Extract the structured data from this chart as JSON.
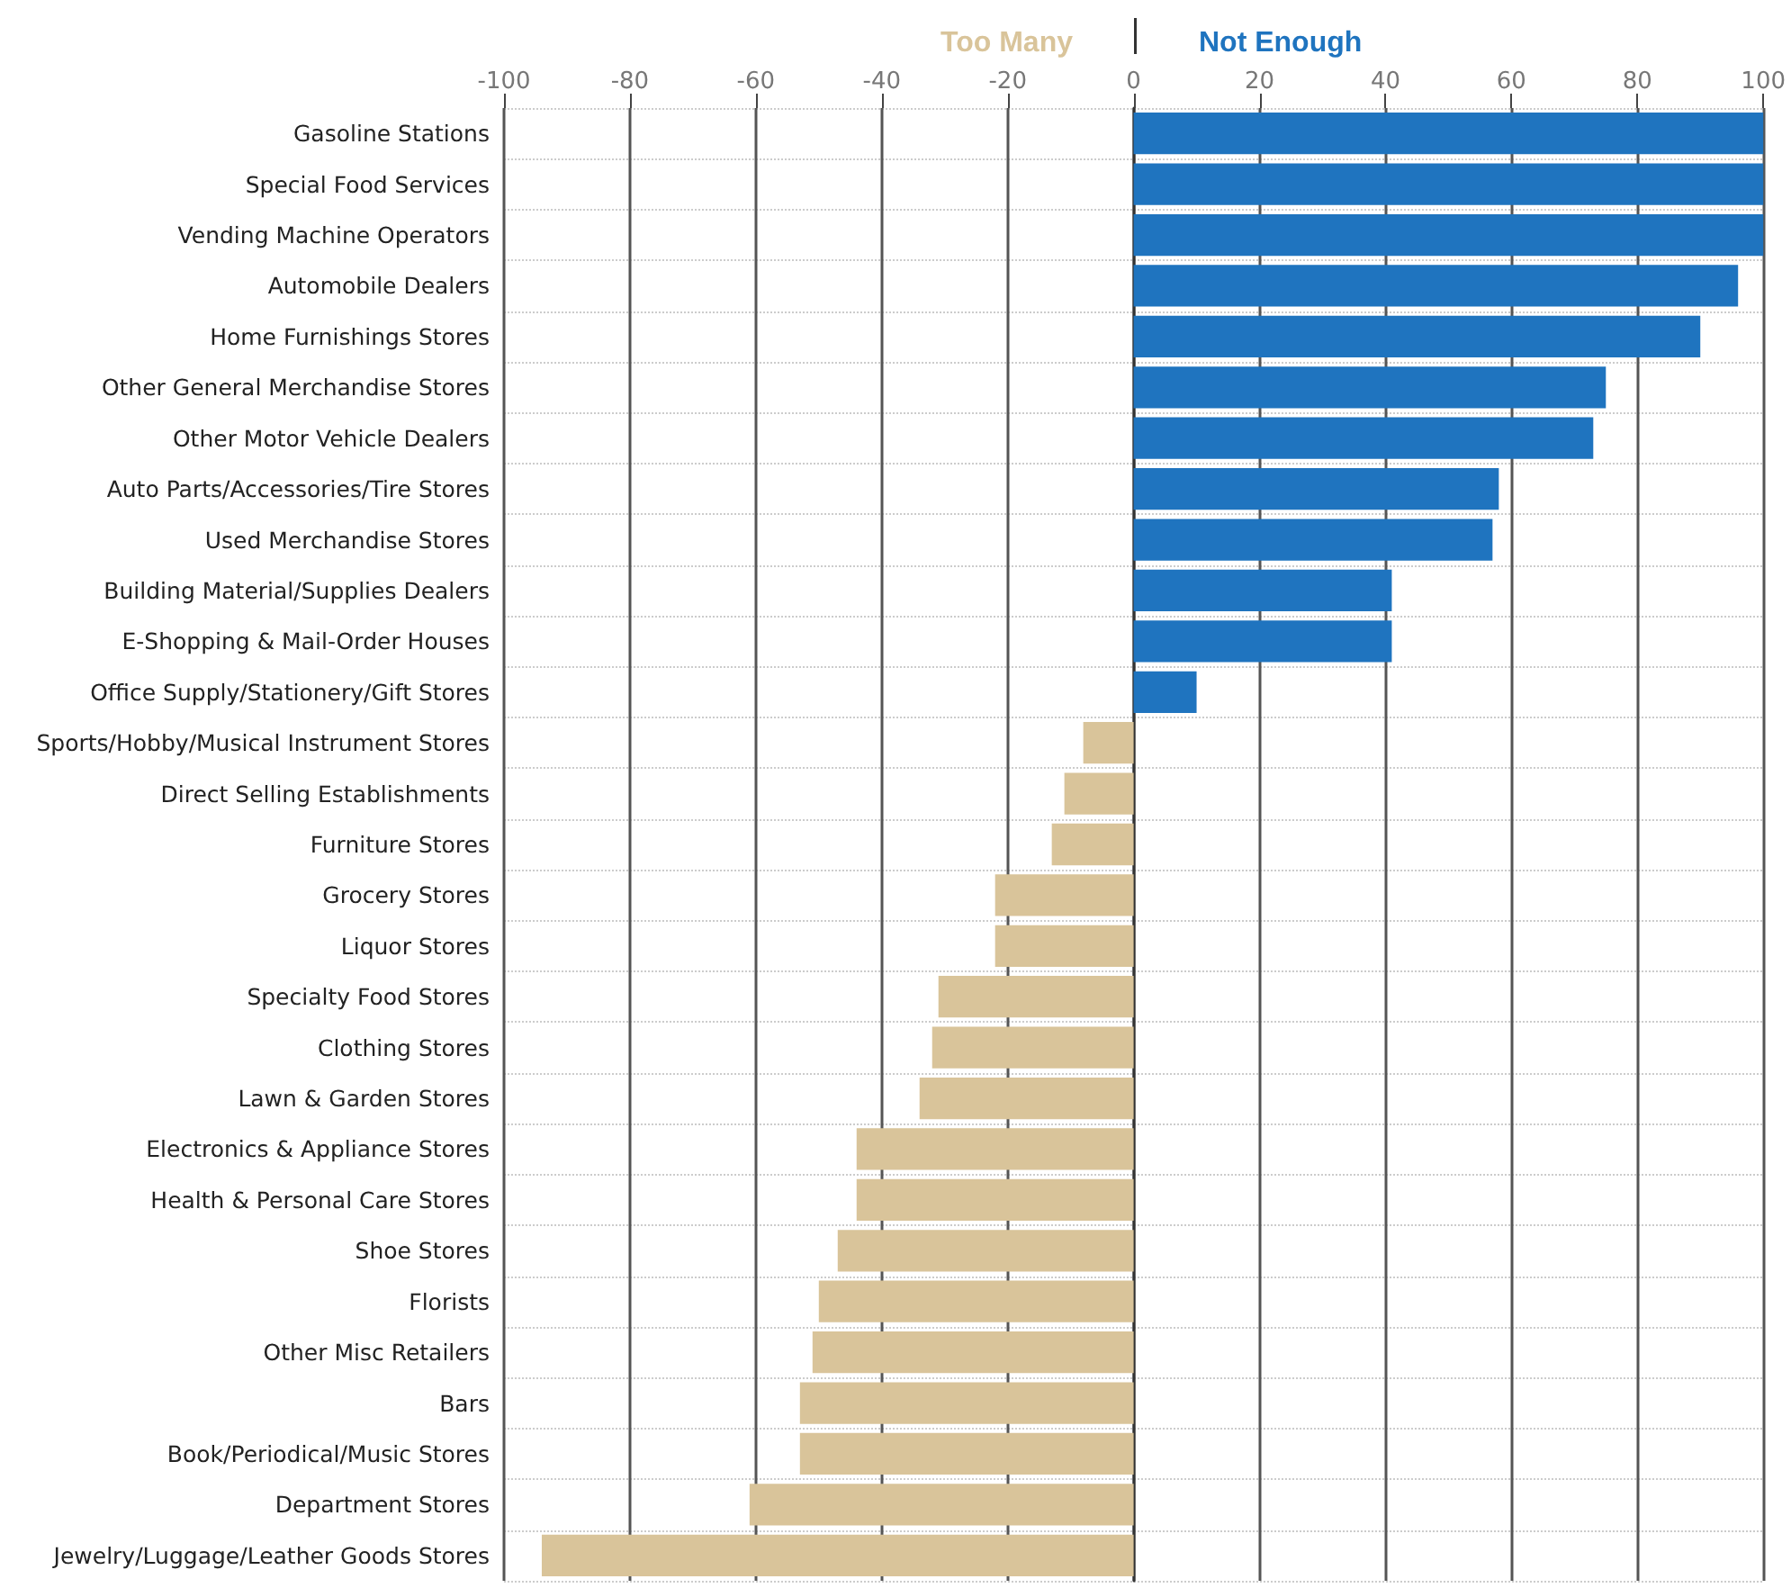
{
  "chart_data": {
    "type": "bar",
    "orientation": "horizontal",
    "categories": [
      "Gasoline Stations",
      "Special Food Services",
      "Vending Machine Operators",
      "Automobile Dealers",
      "Home Furnishings Stores",
      "Other General Merchandise Stores",
      "Other Motor Vehicle Dealers",
      "Auto Parts/Accessories/Tire Stores",
      "Used Merchandise Stores",
      "Building Material/Supplies Dealers",
      "E-Shopping & Mail-Order Houses",
      "Office Supply/Stationery/Gift Stores",
      "Sports/Hobby/Musical Instrument Stores",
      "Direct Selling Establishments",
      "Furniture Stores",
      "Grocery Stores",
      "Liquor Stores",
      "Specialty Food Stores",
      "Clothing Stores",
      "Lawn & Garden Stores",
      "Electronics & Appliance Stores",
      "Health & Personal Care Stores",
      "Shoe Stores",
      "Florists",
      "Other Misc Retailers",
      "Bars",
      "Book/Periodical/Music Stores",
      "Department Stores",
      "Jewelry/Luggage/Leather Goods Stores"
    ],
    "series": [
      {
        "name": "Too Many",
        "color": "#d9c49a",
        "values": [
          null,
          null,
          null,
          null,
          null,
          null,
          null,
          null,
          null,
          null,
          null,
          null,
          -8,
          -11,
          -13,
          -22,
          -22,
          -31,
          -32,
          -34,
          -44,
          -44,
          -47,
          -50,
          -51,
          -53,
          -53,
          -61,
          -94
        ]
      },
      {
        "name": "Not Enough",
        "color": "#1f74bf",
        "values": [
          100,
          100,
          100,
          96,
          90,
          75,
          73,
          58,
          57,
          41,
          41,
          10,
          null,
          null,
          null,
          null,
          null,
          null,
          null,
          null,
          null,
          null,
          null,
          null,
          null,
          null,
          null,
          null,
          null
        ]
      }
    ],
    "xlim": [
      -100,
      100
    ],
    "xticks": [
      -100,
      -80,
      -60,
      -40,
      -20,
      0,
      20,
      40,
      60,
      80,
      100
    ],
    "grid": true,
    "legend": "top"
  }
}
